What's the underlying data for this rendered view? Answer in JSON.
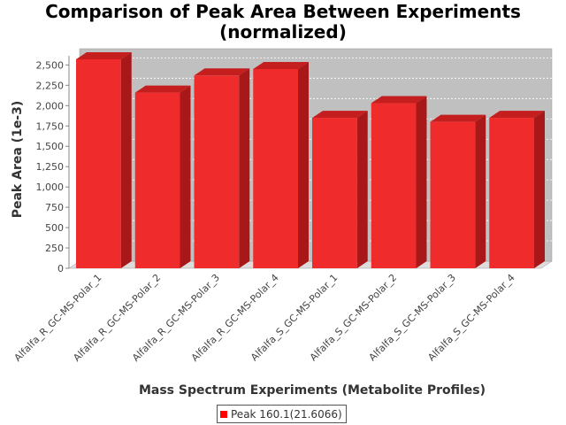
{
  "chart_data": {
    "type": "bar",
    "title_lines": [
      "Comparison of Peak Area Between Experiments",
      "(normalized)"
    ],
    "xlabel": "Mass Spectrum Experiments (Metabolite Profiles)",
    "ylabel": "Peak Area (1e-3)",
    "ylim": [
      0,
      2700
    ],
    "yticks": [
      0,
      250,
      500,
      750,
      1000,
      1250,
      1500,
      1750,
      2000,
      2250,
      2500
    ],
    "ytick_labels": [
      "0",
      "250",
      "500",
      "750",
      "1,000",
      "1,250",
      "1,500",
      "1,750",
      "2,000",
      "2,250",
      "2,500"
    ],
    "categories": [
      "Alfalfa_R_GC-MS-Polar_1",
      "Alfalfa_R_GC-MS-Polar_2",
      "Alfalfa_R_GC-MS-Polar_3",
      "Alfalfa_R_GC-MS-Polar_4",
      "Alfalfa_S_GC-MS-Polar_1",
      "Alfalfa_S_GC-MS-Polar_2",
      "Alfalfa_S_GC-MS-Polar_3",
      "Alfalfa_S_GC-MS-Polar_4"
    ],
    "series": [
      {
        "name": "Peak 160.1(21.6066)",
        "values": [
          2570,
          2160,
          2370,
          2450,
          1850,
          2030,
          1800,
          1850
        ]
      }
    ],
    "legend_position": "bottom",
    "grid": true,
    "colors": {
      "bar_front": "#ef2b2b",
      "bar_top": "#c41e1e",
      "bar_side": "#a81818",
      "plot_back": "#c0c0c0",
      "plot_floor": "#dddddd",
      "grid": "#ffffff",
      "legend_swatch": "#ff0000"
    }
  }
}
